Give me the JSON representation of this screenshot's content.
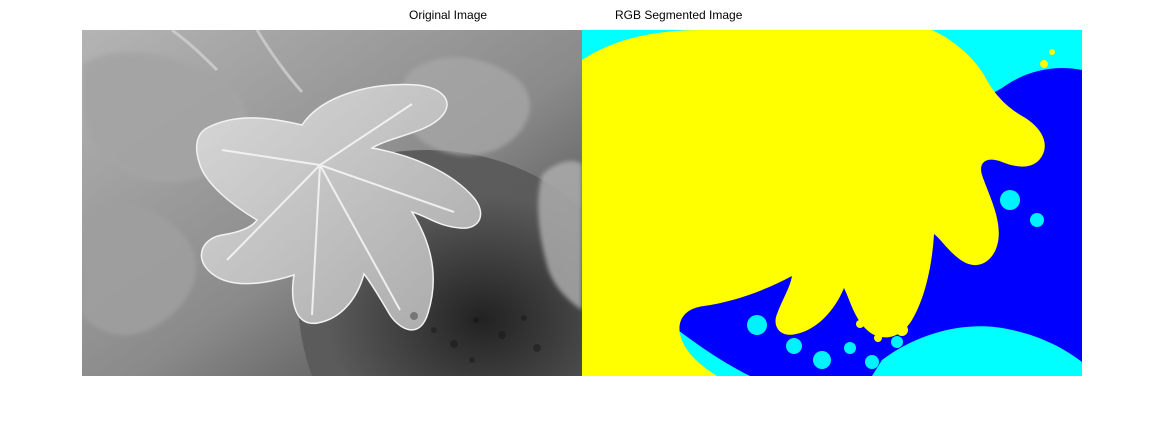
{
  "figure": {
    "left_title": "Original Image",
    "right_title": "RGB Segmented Image"
  },
  "palette": {
    "yellow": "#ffff00",
    "cyan": "#00ffff",
    "blue": "#0000ff",
    "gray_dark": "#2a2a2a",
    "gray_mid": "#7f7f7f",
    "gray_light": "#c8c8c8"
  }
}
